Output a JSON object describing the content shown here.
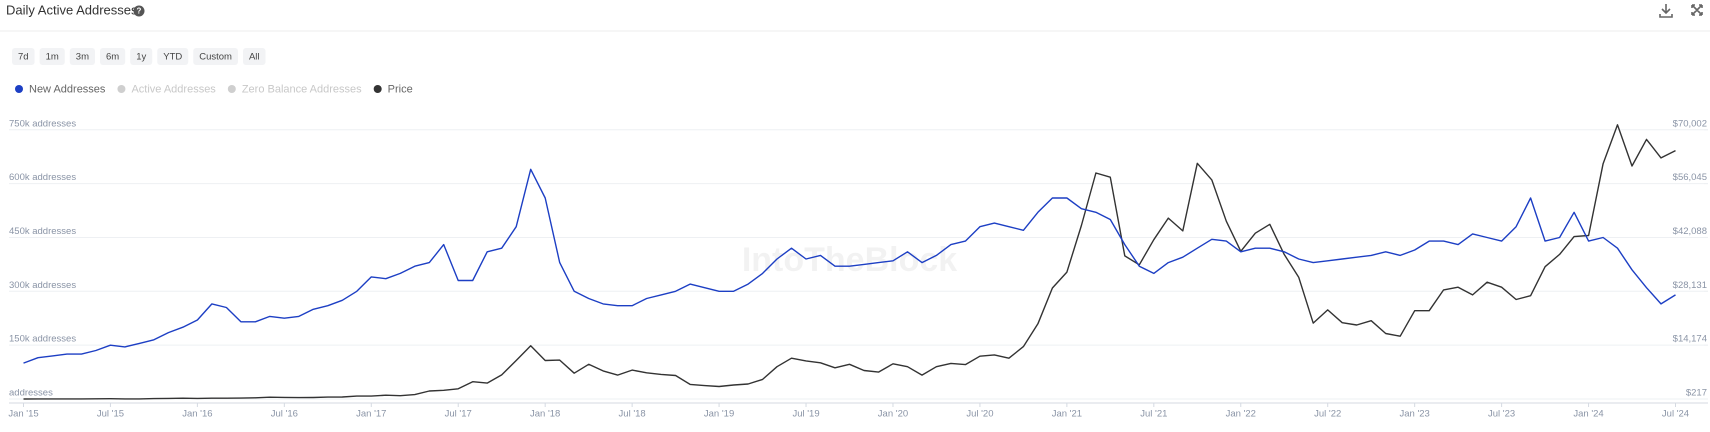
{
  "chart_data": {
    "type": "line",
    "title": "Daily Active Addresses",
    "range_buttons": [
      "7d",
      "1m",
      "3m",
      "6m",
      "1y",
      "YTD",
      "Custom",
      "All"
    ],
    "watermark": "IntoTheBlock",
    "x": [
      "2015-01",
      "2015-02",
      "2015-03",
      "2015-04",
      "2015-05",
      "2015-06",
      "2015-07",
      "2015-08",
      "2015-09",
      "2015-10",
      "2015-11",
      "2015-12",
      "2016-01",
      "2016-02",
      "2016-03",
      "2016-04",
      "2016-05",
      "2016-06",
      "2016-07",
      "2016-08",
      "2016-09",
      "2016-10",
      "2016-11",
      "2016-12",
      "2017-01",
      "2017-02",
      "2017-03",
      "2017-04",
      "2017-05",
      "2017-06",
      "2017-07",
      "2017-08",
      "2017-09",
      "2017-10",
      "2017-11",
      "2017-12",
      "2018-01",
      "2018-02",
      "2018-03",
      "2018-04",
      "2018-05",
      "2018-06",
      "2018-07",
      "2018-08",
      "2018-09",
      "2018-10",
      "2018-11",
      "2018-12",
      "2019-01",
      "2019-02",
      "2019-03",
      "2019-04",
      "2019-05",
      "2019-06",
      "2019-07",
      "2019-08",
      "2019-09",
      "2019-10",
      "2019-11",
      "2019-12",
      "2020-01",
      "2020-02",
      "2020-03",
      "2020-04",
      "2020-05",
      "2020-06",
      "2020-07",
      "2020-08",
      "2020-09",
      "2020-10",
      "2020-11",
      "2020-12",
      "2021-01",
      "2021-02",
      "2021-03",
      "2021-04",
      "2021-05",
      "2021-06",
      "2021-07",
      "2021-08",
      "2021-09",
      "2021-10",
      "2021-11",
      "2021-12",
      "2022-01",
      "2022-02",
      "2022-03",
      "2022-04",
      "2022-05",
      "2022-06",
      "2022-07",
      "2022-08",
      "2022-09",
      "2022-10",
      "2022-11",
      "2022-12",
      "2023-01",
      "2023-02",
      "2023-03",
      "2023-04",
      "2023-05",
      "2023-06",
      "2023-07",
      "2023-08",
      "2023-09",
      "2023-10",
      "2023-11",
      "2023-12",
      "2024-01",
      "2024-02",
      "2024-03",
      "2024-04",
      "2024-05",
      "2024-06",
      "2024-07"
    ],
    "xlim": [
      "2014-12",
      "2024-08"
    ],
    "xticks": [
      {
        "value": "2015-01",
        "label": "Jan '15"
      },
      {
        "value": "2015-07",
        "label": "Jul '15"
      },
      {
        "value": "2016-01",
        "label": "Jan '16"
      },
      {
        "value": "2016-07",
        "label": "Jul '16"
      },
      {
        "value": "2017-01",
        "label": "Jan '17"
      },
      {
        "value": "2017-07",
        "label": "Jul '17"
      },
      {
        "value": "2018-01",
        "label": "Jan '18"
      },
      {
        "value": "2018-07",
        "label": "Jul '18"
      },
      {
        "value": "2019-01",
        "label": "Jan '19"
      },
      {
        "value": "2019-07",
        "label": "Jul '19"
      },
      {
        "value": "2020-01",
        "label": "Jan '20"
      },
      {
        "value": "2020-07",
        "label": "Jul '20"
      },
      {
        "value": "2021-01",
        "label": "Jan '21"
      },
      {
        "value": "2021-07",
        "label": "Jul '21"
      },
      {
        "value": "2022-01",
        "label": "Jan '22"
      },
      {
        "value": "2022-07",
        "label": "Jul '22"
      },
      {
        "value": "2023-01",
        "label": "Jan '23"
      },
      {
        "value": "2023-07",
        "label": "Jul '23"
      },
      {
        "value": "2024-01",
        "label": "Jan '24"
      },
      {
        "value": "2024-07",
        "label": "Jul '24"
      }
    ],
    "ylim": [
      0,
      780000
    ],
    "yticks": [
      {
        "value": 0,
        "label": "addresses"
      },
      {
        "value": 150000,
        "label": "150k addresses"
      },
      {
        "value": 300000,
        "label": "300k addresses"
      },
      {
        "value": 450000,
        "label": "450k addresses"
      },
      {
        "value": 600000,
        "label": "600k addresses"
      },
      {
        "value": 750000,
        "label": "750k addresses"
      }
    ],
    "y2lim": [
      217,
      72793.4
    ],
    "y2ticks": [
      {
        "value": 217,
        "label": "$217"
      },
      {
        "value": 14174,
        "label": "$14,174"
      },
      {
        "value": 28131,
        "label": "$28,131"
      },
      {
        "value": 42088,
        "label": "$42,088"
      },
      {
        "value": 56045,
        "label": "$56,045"
      },
      {
        "value": 70002,
        "label": "$70,002"
      }
    ],
    "grid": true,
    "series": [
      {
        "name": "New Addresses",
        "color": "#1d3fc4",
        "values": [
          100000,
          115000,
          120000,
          125000,
          125000,
          135000,
          150000,
          145000,
          155000,
          165000,
          185000,
          200000,
          220000,
          265000,
          255000,
          215000,
          215000,
          230000,
          225000,
          230000,
          250000,
          260000,
          275000,
          300000,
          340000,
          335000,
          350000,
          370000,
          380000,
          430000,
          330000,
          330000,
          410000,
          420000,
          480000,
          640000,
          560000,
          380000,
          300000,
          280000,
          265000,
          260000,
          260000,
          280000,
          290000,
          300000,
          320000,
          310000,
          300000,
          300000,
          320000,
          350000,
          390000,
          420000,
          390000,
          400000,
          370000,
          370000,
          375000,
          380000,
          385000,
          410000,
          380000,
          400000,
          430000,
          440000,
          480000,
          490000,
          480000,
          470000,
          520000,
          560000,
          560000,
          530000,
          520000,
          500000,
          430000,
          370000,
          350000,
          380000,
          395000,
          420000,
          445000,
          440000,
          410000,
          420000,
          420000,
          410000,
          390000,
          380000,
          385000,
          390000,
          395000,
          400000,
          410000,
          400000,
          415000,
          440000,
          440000,
          430000,
          460000,
          450000,
          440000,
          480000,
          560000,
          440000,
          450000,
          520000,
          440000,
          450000,
          420000,
          360000,
          310000,
          265000,
          290000
        ]
      },
      {
        "name": "Price",
        "color": "#333333",
        "axis": "y2",
        "values": [
          217,
          254,
          244,
          236,
          230,
          263,
          284,
          230,
          236,
          311,
          378,
          430,
          368,
          437,
          416,
          448,
          531,
          673,
          624,
          575,
          609,
          700,
          742,
          963,
          970,
          1190,
          1080,
          1350,
          2300,
          2480,
          2870,
          4700,
          4340,
          6470,
          10200,
          14000,
          10200,
          10300,
          6900,
          9200,
          7500,
          6400,
          7700,
          7000,
          6600,
          6300,
          4000,
          3700,
          3450,
          3850,
          4100,
          5300,
          8600,
          10800,
          10100,
          9600,
          8300,
          9200,
          7600,
          7200,
          9350,
          8600,
          6400,
          8600,
          9450,
          9140,
          11300,
          11650,
          10780,
          13800,
          19700,
          29000,
          33100,
          45200,
          58800,
          57700,
          37300,
          35000,
          41500,
          47100,
          43800,
          61300,
          57000,
          46300,
          38500,
          43200,
          45500,
          37700,
          31800,
          19900,
          23300,
          20000,
          19400,
          20500,
          17200,
          16500,
          23100,
          23100,
          28500,
          29200,
          27200,
          30500,
          29200,
          26000,
          27000,
          34500,
          37700,
          42300,
          42600,
          61200,
          71300,
          60600,
          67500,
          62700,
          64600
        ]
      }
    ],
    "hidden_series": [
      {
        "name": "Active Addresses",
        "color": "#cfcfcf"
      },
      {
        "name": "Zero Balance Addresses",
        "color": "#cfcfcf"
      }
    ]
  }
}
